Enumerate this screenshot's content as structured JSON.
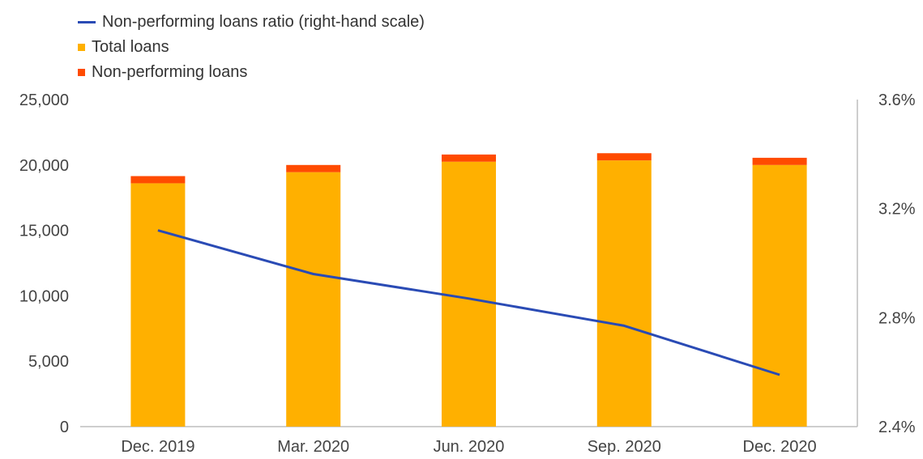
{
  "chart_data": {
    "type": "bar",
    "categories": [
      "Dec. 2019",
      "Mar. 2020",
      "Jun. 2020",
      "Sep. 2020",
      "Dec. 2020"
    ],
    "series": [
      {
        "name": "Total loans",
        "type": "bar",
        "axis": "left",
        "stack": "loans",
        "values": [
          18600,
          19450,
          20250,
          20350,
          20000
        ]
      },
      {
        "name": "Non-performing loans",
        "type": "bar",
        "axis": "left",
        "stack": "loans",
        "values": [
          550,
          550,
          550,
          550,
          550
        ]
      },
      {
        "name": "Non-performing loans ratio (right-hand scale)",
        "type": "line",
        "axis": "right",
        "values": [
          3.12,
          2.96,
          2.87,
          2.77,
          2.59
        ]
      }
    ],
    "left_axis": {
      "ylim": [
        0,
        25000
      ],
      "ticks": [
        "0",
        "5,000",
        "10,000",
        "15,000",
        "20,000",
        "25,000"
      ]
    },
    "right_axis": {
      "ylim": [
        2.4,
        3.6
      ],
      "ticks": [
        "2.4%",
        "2.8%",
        "3.2%",
        "3.6%"
      ]
    },
    "grid": false,
    "legend_position": "top-left"
  },
  "legend": [
    {
      "label": "Non-performing loans ratio (right-hand scale)",
      "color": "#2a4bb5",
      "shape": "line"
    },
    {
      "label": "Total loans",
      "color": "#ffb000",
      "shape": "square"
    },
    {
      "label": "Non-performing loans",
      "color": "#ff4b00",
      "shape": "square"
    }
  ],
  "colors": {
    "total_loans": "#ffb000",
    "npl": "#ff4b00",
    "ratio_line": "#2a4bb5",
    "axis": "#bdbdbd"
  }
}
